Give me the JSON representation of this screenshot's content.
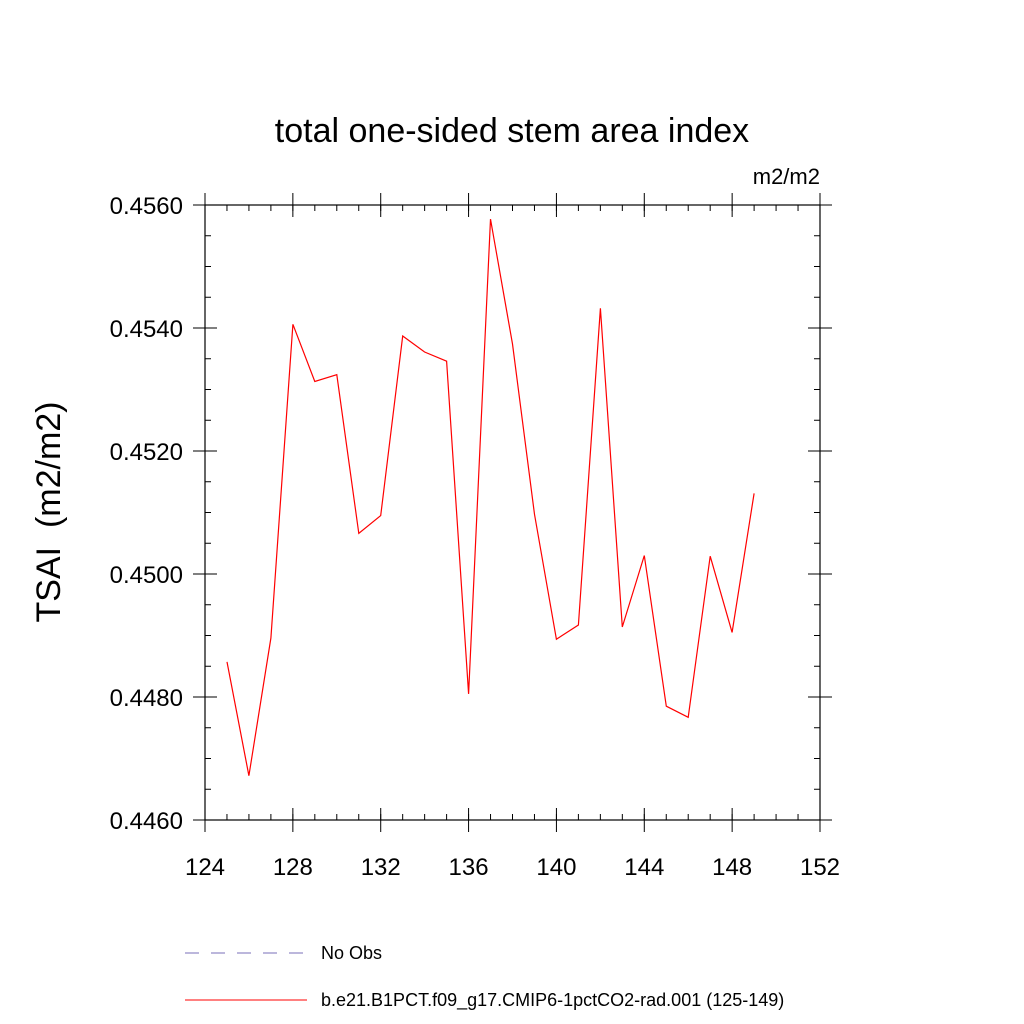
{
  "chart_data": {
    "type": "line",
    "title": "total one-sided stem area index",
    "units": "m2/m2",
    "xlabel": "",
    "ylabel": "TSAI  (m2/m2)",
    "xlim": [
      124,
      152
    ],
    "ylim": [
      0.446,
      0.456
    ],
    "xticks": [
      124,
      128,
      132,
      136,
      140,
      144,
      148,
      152
    ],
    "xtick_labels": [
      "124",
      "128",
      "132",
      "136",
      "140",
      "144",
      "148",
      "152"
    ],
    "yticks": [
      0.446,
      0.448,
      0.45,
      0.452,
      0.454,
      0.456
    ],
    "ytick_labels": [
      "0.4460",
      "0.4480",
      "0.4500",
      "0.4520",
      "0.4540",
      "0.4560"
    ],
    "x_minor_step": 1,
    "y_minor_step": 0.0005,
    "grid": false,
    "legend_position": "bottom",
    "series": [
      {
        "name": "No Obs",
        "color": "#7a6fb8",
        "dash": "dashed",
        "x": [],
        "values": []
      },
      {
        "name": "b.e21.B1PCT.f09_g17.CMIP6-1pctCO2-rad.001 (125-149)",
        "color": "#ff0000",
        "dash": "solid",
        "x": [
          125,
          126,
          127,
          128,
          129,
          130,
          131,
          132,
          133,
          134,
          135,
          136,
          137,
          138,
          139,
          140,
          141,
          142,
          143,
          144,
          145,
          146,
          147,
          148,
          149
        ],
        "values": [
          0.44857,
          0.44672,
          0.44896,
          0.45406,
          0.45313,
          0.45324,
          0.45066,
          0.45095,
          0.45387,
          0.45361,
          0.45346,
          0.44805,
          0.45577,
          0.45374,
          0.45097,
          0.44894,
          0.44917,
          0.45432,
          0.44914,
          0.4503,
          0.44785,
          0.44767,
          0.45029,
          0.44905,
          0.45131
        ]
      }
    ]
  }
}
